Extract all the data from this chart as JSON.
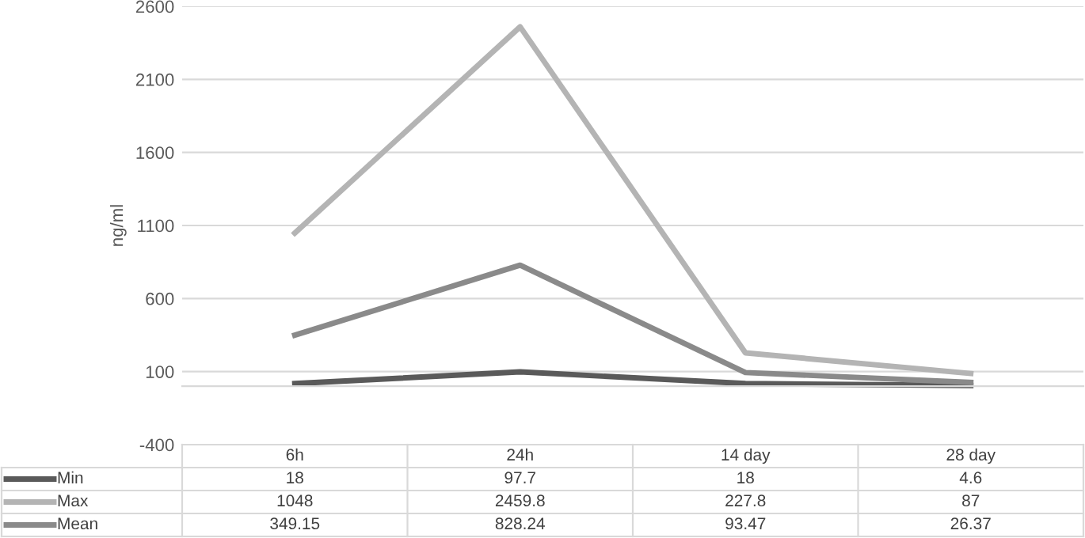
{
  "chart_data": {
    "type": "line",
    "ylabel": "ng/ml",
    "categories": [
      "6h",
      "24h",
      "14 day",
      "28 day"
    ],
    "series": [
      {
        "name": "Min",
        "color": "#5a5a5a",
        "values": [
          18,
          97.7,
          18,
          4.6
        ]
      },
      {
        "name": "Max",
        "color": "#b4b4b4",
        "values": [
          1048,
          2459.8,
          227.8,
          87
        ]
      },
      {
        "name": "Mean",
        "color": "#8a8a8a",
        "values": [
          349.15,
          828.24,
          93.47,
          26.37
        ]
      }
    ],
    "ylim": [
      -400,
      2600
    ],
    "yticks": [
      -400,
      100,
      600,
      1100,
      1600,
      2100,
      2600
    ],
    "grid": "y",
    "data_labels": true,
    "tick_labels": "y",
    "legend": "bottom",
    "marker": "none",
    "line_style": "solid"
  }
}
